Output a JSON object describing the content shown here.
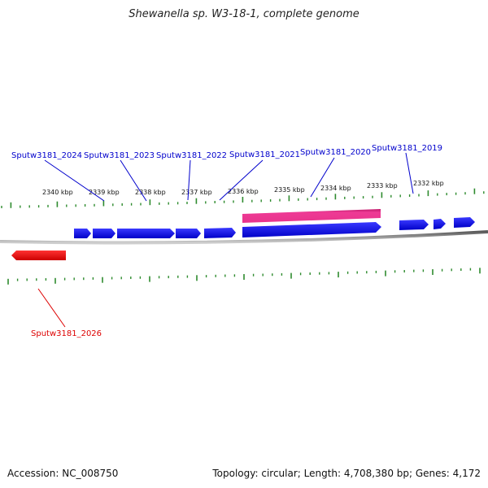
{
  "title": "Shewanella sp. W3-18-1, complete genome",
  "footer": {
    "accession": "Accession: NC_008750",
    "topology": "Topology: circular; Length: 4,708,380 bp; Genes: 4,172"
  },
  "colors": {
    "forward_gene": "#0000ee",
    "reverse_gene": "#ee0000",
    "highlight": "#e8348c",
    "ticks": "#2e8b2e",
    "backbone": "#888888",
    "label_forward": "#0000cc",
    "label_reverse": "#dd0000"
  },
  "axis_labels": [
    "2340 kbp",
    "2339 kbp",
    "2338 kbp",
    "2337 kbp",
    "2336 kbp",
    "2335 kbp",
    "2334 kbp",
    "2333 kbp",
    "2332 kbp"
  ],
  "gene_labels": [
    {
      "text": "Sputw3181_2024",
      "strand": "forward"
    },
    {
      "text": "Sputw3181_2023",
      "strand": "forward"
    },
    {
      "text": "Sputw3181_2022",
      "strand": "forward"
    },
    {
      "text": "Sputw3181_2021",
      "strand": "forward"
    },
    {
      "text": "Sputw3181_2020",
      "strand": "forward"
    },
    {
      "text": "Sputw3181_2019",
      "strand": "forward"
    },
    {
      "text": "Sputw3181_2026",
      "strand": "reverse"
    }
  ]
}
